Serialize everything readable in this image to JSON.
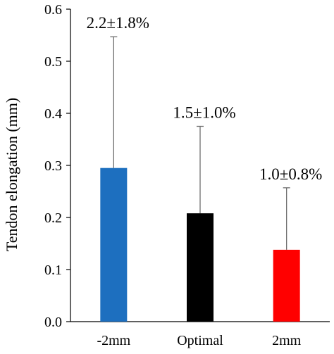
{
  "chart_data": {
    "type": "bar",
    "title": "",
    "xlabel": "",
    "ylabel": "Tendon elongation (mm)",
    "ylim": [
      0,
      0.6
    ],
    "yticks": [
      "0.0",
      "0.1",
      "0.2",
      "0.3",
      "0.4",
      "0.5",
      "0.6"
    ],
    "categories": [
      "-2mm",
      "Optimal",
      "2mm"
    ],
    "values": [
      0.295,
      0.208,
      0.138
    ],
    "error_upper": [
      0.252,
      0.167,
      0.119
    ],
    "bar_colors": [
      "#1d6fbf",
      "#000000",
      "#ff0000"
    ],
    "annotations": [
      "2.2±1.8%",
      "1.5±1.0%",
      "1.0±0.8%"
    ],
    "grid": false,
    "legend": "none"
  }
}
